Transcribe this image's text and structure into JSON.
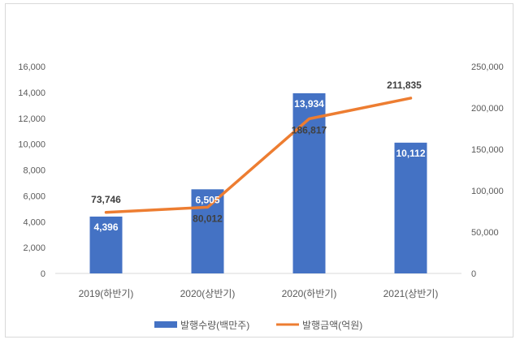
{
  "chart_data": {
    "type": "bar",
    "title": "",
    "categories": [
      "2019(하반기)",
      "2020(상반기)",
      "2020(하반기)",
      "2021(상반기)"
    ],
    "series": [
      {
        "name": "발행수량(백만주)",
        "type": "bar",
        "axis": "left",
        "color": "#4472C4",
        "values": [
          4396,
          6505,
          13934,
          10112
        ],
        "labels": [
          "4,396",
          "6,505",
          "13,934",
          "10,112"
        ]
      },
      {
        "name": "발행금액(억원)",
        "type": "line",
        "axis": "right",
        "color": "#ED7D31",
        "values": [
          73746,
          80012,
          186817,
          211835
        ],
        "labels": [
          "73,746",
          "80,012",
          "186,817",
          "211,835"
        ]
      }
    ],
    "y_left": {
      "range": [
        0,
        16000
      ],
      "ticks": [
        "0",
        "2,000",
        "4,000",
        "6,000",
        "8,000",
        "10,000",
        "12,000",
        "14,000",
        "16,000"
      ]
    },
    "y_right": {
      "range": [
        0,
        250000
      ],
      "ticks": [
        "0",
        "50,000",
        "100,000",
        "150,000",
        "200,000",
        "250,000"
      ]
    },
    "grid": false,
    "legend_position": "bottom"
  }
}
